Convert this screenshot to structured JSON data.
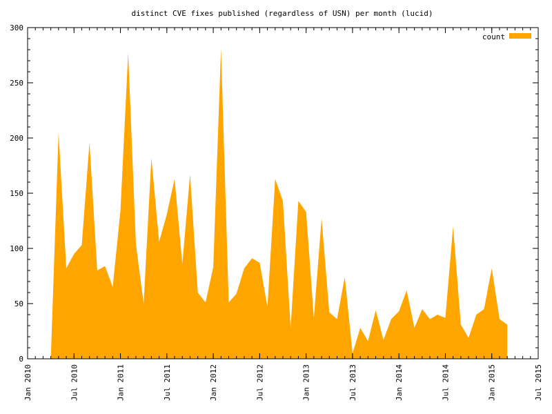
{
  "chart_data": {
    "type": "area",
    "title": "distinct CVE fixes published (regardless of USN) per month (lucid)",
    "xlabel": "",
    "ylabel": "",
    "ylim": [
      0,
      300
    ],
    "yticks": [
      0,
      50,
      100,
      150,
      200,
      250,
      300
    ],
    "xlim": [
      "2010-01",
      "2015-07"
    ],
    "xticks": [
      {
        "date": "2010-01",
        "label": "Jan 2010"
      },
      {
        "date": "2010-07",
        "label": "Jul 2010"
      },
      {
        "date": "2011-01",
        "label": "Jan 2011"
      },
      {
        "date": "2011-07",
        "label": "Jul 2011"
      },
      {
        "date": "2012-01",
        "label": "Jan 2012"
      },
      {
        "date": "2012-07",
        "label": "Jul 2012"
      },
      {
        "date": "2013-01",
        "label": "Jan 2013"
      },
      {
        "date": "2013-07",
        "label": "Jul 2013"
      },
      {
        "date": "2014-01",
        "label": "Jan 2014"
      },
      {
        "date": "2014-07",
        "label": "Jul 2014"
      },
      {
        "date": "2015-01",
        "label": "Jan 2015"
      },
      {
        "date": "2015-07",
        "label": "Jul 2015"
      }
    ],
    "grid": false,
    "legend": "top-right",
    "color": "#ffa500",
    "series": [
      {
        "name": "count",
        "x": [
          "2010-04",
          "2010-05",
          "2010-06",
          "2010-07",
          "2010-08",
          "2010-09",
          "2010-10",
          "2010-11",
          "2010-12",
          "2011-01",
          "2011-02",
          "2011-03",
          "2011-04",
          "2011-05",
          "2011-06",
          "2011-07",
          "2011-08",
          "2011-09",
          "2011-10",
          "2011-11",
          "2011-12",
          "2012-01",
          "2012-02",
          "2012-03",
          "2012-04",
          "2012-05",
          "2012-06",
          "2012-07",
          "2012-08",
          "2012-09",
          "2012-10",
          "2012-11",
          "2012-12",
          "2013-01",
          "2013-02",
          "2013-03",
          "2013-04",
          "2013-05",
          "2013-06",
          "2013-07",
          "2013-08",
          "2013-09",
          "2013-10",
          "2013-11",
          "2013-12",
          "2014-01",
          "2014-02",
          "2014-03",
          "2014-04",
          "2014-05",
          "2014-06",
          "2014-07",
          "2014-08",
          "2014-09",
          "2014-10",
          "2014-11",
          "2014-12",
          "2015-01",
          "2015-02",
          "2015-03"
        ],
        "y": [
          0,
          205,
          82,
          95,
          103,
          196,
          80,
          84,
          65,
          134,
          277,
          104,
          50,
          182,
          106,
          131,
          163,
          86,
          167,
          60,
          51,
          83,
          281,
          51,
          59,
          82,
          91,
          87,
          47,
          163,
          143,
          28,
          143,
          133,
          37,
          127,
          42,
          36,
          74,
          5,
          28,
          16,
          44,
          17,
          36,
          43,
          62,
          28,
          45,
          36,
          40,
          37,
          120,
          31,
          19,
          40,
          45,
          82,
          36,
          31
        ]
      }
    ]
  }
}
